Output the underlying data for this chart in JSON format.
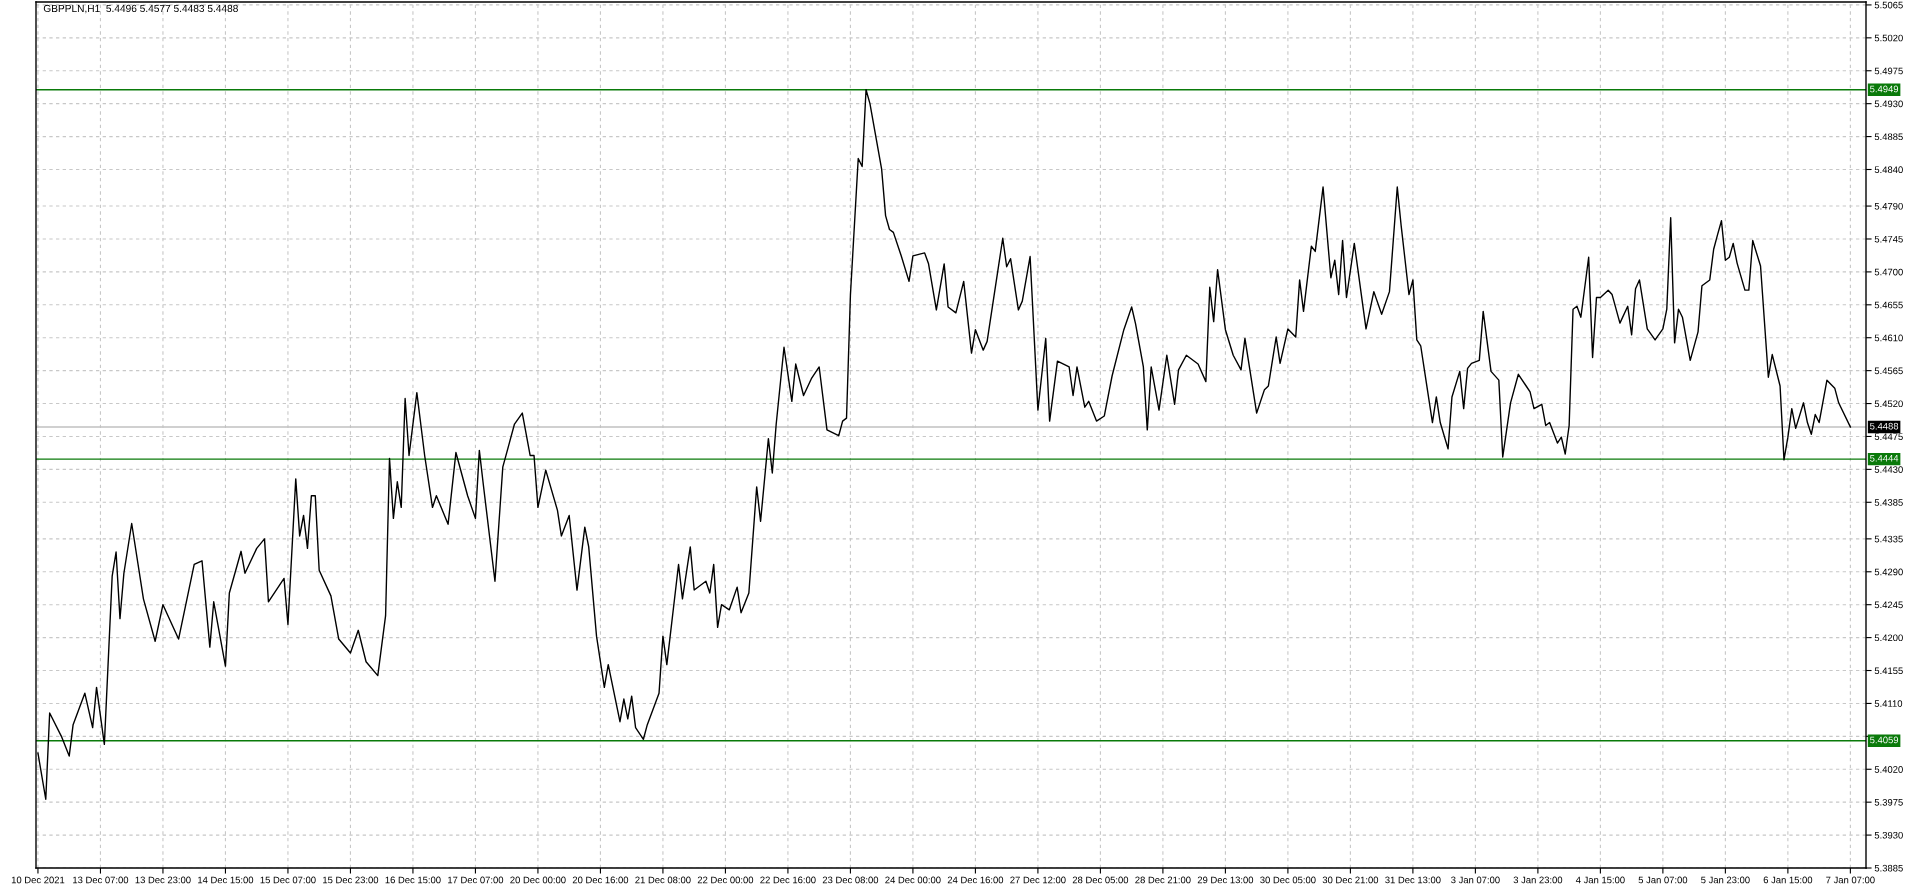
{
  "chart_data": {
    "type": "line",
    "title": "GBPPLN,H1  5.4496 5.4577 5.4483 5.4488",
    "categories": [
      "10 Dec 2021",
      null,
      null,
      null,
      null,
      null,
      null,
      null,
      null,
      null,
      null,
      null,
      null,
      null,
      null,
      null,
      "13 Dec 07:00",
      null,
      null,
      null,
      null,
      null,
      null,
      null,
      null,
      null,
      null,
      null,
      null,
      null,
      null,
      null,
      "13 Dec 23:00",
      null,
      null,
      null,
      null,
      null,
      null,
      null,
      null,
      null,
      null,
      null,
      null,
      null,
      null,
      null,
      "14 Dec 15:00",
      null,
      null,
      null,
      null,
      null,
      null,
      null,
      null,
      null,
      null,
      null,
      null,
      null,
      null,
      null,
      "15 Dec 07:00",
      null,
      null,
      null,
      null,
      null,
      null,
      null,
      null,
      null,
      null,
      null,
      null,
      null,
      null,
      null,
      "15 Dec 23:00",
      null,
      null,
      null,
      null,
      null,
      null,
      null,
      null,
      null,
      null,
      null,
      null,
      null,
      null,
      null,
      "16 Dec 15:00",
      null,
      null,
      null,
      null,
      null,
      null,
      null,
      null,
      null,
      null,
      null,
      null,
      null,
      null,
      null,
      "17 Dec 07:00",
      null,
      null,
      null,
      null,
      null,
      null,
      null,
      null,
      null,
      null,
      null,
      null,
      null,
      null,
      null,
      "20 Dec 00:00",
      null,
      null,
      null,
      null,
      null,
      null,
      null,
      null,
      null,
      null,
      null,
      null,
      null,
      null,
      null,
      "20 Dec 16:00",
      null,
      null,
      null,
      null,
      null,
      null,
      null,
      null,
      null,
      null,
      null,
      null,
      null,
      null,
      null,
      "21 Dec 08:00",
      null,
      null,
      null,
      null,
      null,
      null,
      null,
      null,
      null,
      null,
      null,
      null,
      null,
      null,
      null,
      "22 Dec 00:00",
      null,
      null,
      null,
      null,
      null,
      null,
      null,
      null,
      null,
      null,
      null,
      null,
      null,
      null,
      null,
      "22 Dec 16:00",
      null,
      null,
      null,
      null,
      null,
      null,
      null,
      null,
      null,
      null,
      null,
      null,
      null,
      null,
      null,
      "23 Dec 08:00",
      null,
      null,
      null,
      null,
      null,
      null,
      null,
      null,
      null,
      null,
      null,
      null,
      null,
      null,
      null,
      "24 Dec 00:00",
      null,
      null,
      null,
      null,
      null,
      null,
      null,
      null,
      null,
      null,
      null,
      null,
      null,
      null,
      null,
      "24 Dec 16:00",
      null,
      null,
      null,
      null,
      null,
      null,
      null,
      null,
      null,
      null,
      null,
      null,
      null,
      null,
      null,
      "27 Dec 12:00",
      null,
      null,
      null,
      null,
      null,
      null,
      null,
      null,
      null,
      null,
      null,
      null,
      null,
      null,
      null,
      "28 Dec 05:00",
      null,
      null,
      null,
      null,
      null,
      null,
      null,
      null,
      null,
      null,
      null,
      null,
      null,
      null,
      null,
      "28 Dec 21:00",
      null,
      null,
      null,
      null,
      null,
      null,
      null,
      null,
      null,
      null,
      null,
      null,
      null,
      null,
      null,
      "29 Dec 13:00",
      null,
      null,
      null,
      null,
      null,
      null,
      null,
      null,
      null,
      null,
      null,
      null,
      null,
      null,
      null,
      "30 Dec 05:00",
      null,
      null,
      null,
      null,
      null,
      null,
      null,
      null,
      null,
      null,
      null,
      null,
      null,
      null,
      null,
      "30 Dec 21:00",
      null,
      null,
      null,
      null,
      null,
      null,
      null,
      null,
      null,
      null,
      null,
      null,
      null,
      null,
      null,
      "31 Dec 13:00",
      null,
      null,
      null,
      null,
      null,
      null,
      null,
      null,
      null,
      null,
      null,
      null,
      null,
      null,
      null,
      "3 Jan 07:00",
      null,
      null,
      null,
      null,
      null,
      null,
      null,
      null,
      null,
      null,
      null,
      null,
      null,
      null,
      null,
      "3 Jan 23:00",
      null,
      null,
      null,
      null,
      null,
      null,
      null,
      null,
      null,
      null,
      null,
      null,
      null,
      null,
      null,
      "4 Jan 15:00",
      null,
      null,
      null,
      null,
      null,
      null,
      null,
      null,
      null,
      null,
      null,
      null,
      null,
      null,
      null,
      "5 Jan 07:00",
      null,
      null,
      null,
      null,
      null,
      null,
      null,
      null,
      null,
      null,
      null,
      null,
      null,
      null,
      null,
      "5 Jan 23:00",
      null,
      null,
      null,
      null,
      null,
      null,
      null,
      null,
      null,
      null,
      null,
      null,
      null,
      null,
      null,
      "6 Jan 15:00",
      null,
      null,
      null,
      null,
      null,
      null,
      null,
      null,
      null,
      null,
      null,
      null,
      null,
      null,
      null,
      "7 Jan 07:00"
    ],
    "series": [
      {
        "color": "#000000",
        "values": [
          5.4042,
          null,
          5.3979,
          5.4097,
          null,
          null,
          5.4065,
          null,
          5.4038,
          5.4081,
          null,
          null,
          5.4124,
          null,
          5.4077,
          5.4132,
          null,
          5.4054,
          null,
          5.4284,
          5.4317,
          5.4226,
          5.4288,
          null,
          5.4356,
          null,
          null,
          5.4253,
          null,
          null,
          5.4195,
          null,
          5.4245,
          null,
          null,
          null,
          5.4198,
          null,
          null,
          null,
          5.43,
          null,
          5.4305,
          null,
          5.4187,
          5.4249,
          null,
          null,
          5.4161,
          5.4261,
          null,
          null,
          5.4318,
          5.4288,
          null,
          null,
          5.4322,
          null,
          5.4335,
          5.4249,
          null,
          null,
          null,
          5.4281,
          5.4218,
          null,
          5.4417,
          5.4339,
          5.4367,
          5.4322,
          5.4394,
          5.4394,
          5.4292,
          null,
          null,
          5.4257,
          null,
          5.4198,
          null,
          null,
          5.4179,
          null,
          5.421,
          null,
          5.4167,
          null,
          null,
          5.4148,
          null,
          5.423,
          5.4445,
          5.4363,
          5.4413,
          5.4378,
          5.4527,
          5.4449,
          null,
          5.4535,
          null,
          5.4449,
          null,
          5.4378,
          5.4394,
          null,
          null,
          5.4355,
          null,
          5.4453,
          null,
          null,
          5.4394,
          null,
          5.4363,
          5.4456,
          5.441,
          null,
          null,
          5.4277,
          null,
          5.4433,
          null,
          null,
          5.4492,
          null,
          5.4507,
          null,
          5.4449,
          5.4449,
          5.4378,
          null,
          5.4429,
          null,
          null,
          5.4374,
          5.4339,
          null,
          5.4367,
          null,
          5.4265,
          null,
          5.4351,
          5.4324,
          null,
          5.4202,
          null,
          5.4132,
          5.4163,
          null,
          null,
          5.4085,
          5.4116,
          5.4089,
          5.412,
          5.4077,
          null,
          5.4061,
          5.4081,
          null,
          null,
          5.4124,
          5.4202,
          5.4163,
          null,
          null,
          5.43,
          5.4253,
          null,
          5.4324,
          5.4265,
          null,
          null,
          5.4277,
          5.4261,
          5.43,
          5.4214,
          5.4245,
          null,
          5.4238,
          null,
          5.4269,
          5.4234,
          null,
          5.4261,
          null,
          5.4406,
          5.4359,
          null,
          5.4472,
          5.4425,
          5.4492,
          null,
          5.4597,
          null,
          5.4523,
          5.4574,
          null,
          5.4531,
          null,
          5.4554,
          null,
          5.457,
          null,
          5.4484,
          null,
          null,
          5.4476,
          5.4496,
          5.45,
          5.4668,
          null,
          5.4855,
          5.4844,
          5.4949,
          5.493,
          null,
          null,
          5.484,
          5.4777,
          5.4758,
          5.4754,
          null,
          5.4722,
          null,
          5.4687,
          5.4722,
          null,
          null,
          5.4726,
          5.4711,
          null,
          5.4648,
          null,
          5.4711,
          5.4652,
          null,
          5.4644,
          null,
          5.4687,
          null,
          5.4589,
          5.4621,
          null,
          5.4593,
          5.4605,
          null,
          null,
          null,
          5.4746,
          5.4707,
          5.4718,
          null,
          5.4648,
          5.466,
          null,
          5.4721,
          null,
          5.4511,
          null,
          5.4609,
          5.4496,
          null,
          5.4578,
          null,
          null,
          5.457,
          5.4531,
          5.457,
          null,
          5.4515,
          5.4523,
          null,
          5.4496,
          null,
          5.4503,
          null,
          5.4558,
          null,
          null,
          5.4621,
          null,
          5.4652,
          5.4629,
          null,
          5.457,
          5.4484,
          5.457,
          null,
          5.4511,
          null,
          5.4586,
          null,
          5.4519,
          5.4566,
          null,
          5.4586,
          null,
          null,
          5.4574,
          null,
          5.455,
          5.4679,
          5.4632,
          5.4703,
          null,
          5.4621,
          null,
          5.4586,
          null,
          5.4566,
          5.4609,
          null,
          null,
          5.4507,
          null,
          5.4539,
          5.4544,
          null,
          5.4611,
          5.4575,
          null,
          5.4622,
          null,
          5.4611,
          5.4689,
          5.4646,
          null,
          5.4735,
          5.4728,
          null,
          5.4816,
          null,
          5.4692,
          5.4716,
          5.4669,
          5.4743,
          5.4665,
          null,
          5.4739,
          null,
          null,
          5.4622,
          null,
          5.4673,
          null,
          5.4642,
          null,
          5.4673,
          null,
          5.4816,
          5.4763,
          null,
          5.4669,
          5.4689,
          5.4607,
          5.4599,
          5.4564,
          null,
          5.4494,
          5.4529,
          5.4494,
          null,
          5.4458,
          5.4529,
          null,
          5.4564,
          5.4513,
          5.4568,
          5.4575,
          null,
          5.4579,
          5.4646,
          null,
          5.4564,
          null,
          5.4552,
          5.4447,
          null,
          5.4521,
          null,
          5.456,
          null,
          5.4544,
          5.4536,
          5.4513,
          null,
          5.4519,
          5.449,
          5.4494,
          null,
          5.4466,
          5.4474,
          5.4451,
          5.449,
          5.4649,
          5.4653,
          5.4638,
          null,
          5.472,
          5.4583,
          5.4665,
          5.4665,
          null,
          5.4675,
          5.4669,
          null,
          5.463,
          null,
          5.4653,
          5.4614,
          5.4677,
          5.4689,
          null,
          5.4622,
          null,
          5.4607,
          null,
          5.4622,
          5.4649,
          5.4774,
          5.4603,
          5.4649,
          5.4638,
          null,
          5.4579,
          null,
          5.4618,
          5.4681,
          null,
          5.4689,
          5.4731,
          5.4751,
          5.477,
          5.4716,
          5.472,
          5.4739,
          5.4712,
          null,
          5.4675,
          5.4675,
          5.4743,
          null,
          5.4708,
          null,
          5.4556,
          5.4587,
          null,
          5.4544,
          5.4443,
          5.4474,
          5.4513,
          5.4486,
          null,
          5.4521,
          5.4494,
          5.4478,
          5.4505,
          5.4494,
          null,
          5.4552,
          null,
          5.4541,
          5.4521,
          null,
          null,
          5.4488
        ]
      }
    ],
    "ylim": [
      5.3885,
      5.5069
    ],
    "yticks": [
      5.3885,
      {
        "value": 5.393,
        "label": "5.3930"
      },
      5.3975,
      {
        "value": 5.402,
        "label": "5.4020"
      },
      {
        "value": 5.4065,
        "label": null
      },
      {
        "value": 5.411,
        "label": "5.4110"
      },
      5.4155,
      {
        "value": 5.42,
        "label": "5.4200"
      },
      5.4245,
      {
        "value": 5.429,
        "label": "5.4290"
      },
      5.4335,
      5.4385,
      {
        "value": 5.443,
        "label": "5.4430"
      },
      5.4475,
      {
        "value": 5.452,
        "label": "5.4520"
      },
      5.4565,
      {
        "value": 5.461,
        "label": "5.4610"
      },
      5.4655,
      {
        "value": 5.47,
        "label": "5.4700"
      },
      5.4745,
      {
        "value": 5.479,
        "label": "5.4790"
      },
      {
        "value": 5.484,
        "label": "5.4840"
      },
      5.4885,
      {
        "value": 5.493,
        "label": "5.4930"
      },
      5.4975,
      {
        "value": 5.502,
        "label": "5.5020"
      },
      5.5065
    ],
    "ref_lines": [
      {
        "axis": "y",
        "value": 5.4949,
        "label": "5.4949",
        "color": "#0a7a0a"
      },
      {
        "axis": "y",
        "value": 5.4488,
        "label": "5.4488",
        "color": "#c0c0c0"
      },
      {
        "axis": "y",
        "value": 5.4444,
        "label": "5.4444",
        "color": "#0a7a0a"
      },
      {
        "axis": "y",
        "value": 5.4059,
        "label": "5.4059",
        "color": "#0a7a0a"
      }
    ],
    "grid": true,
    "marker": "none",
    "line_style": "solid"
  }
}
